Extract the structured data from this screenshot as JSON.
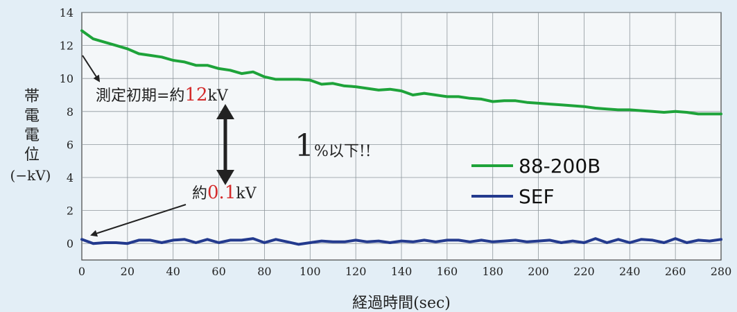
{
  "chart_data": {
    "type": "line",
    "xlabel": "経過時間(sec)",
    "ylabel_chars": [
      "帯",
      "電",
      "電",
      "位"
    ],
    "ylabel_unit": "(−kV)",
    "xlim": [
      0,
      280
    ],
    "ylim": [
      -1,
      14
    ],
    "xticks": [
      0,
      20,
      40,
      60,
      80,
      100,
      120,
      140,
      160,
      180,
      200,
      220,
      240,
      260,
      280
    ],
    "yticks": [
      0,
      2,
      4,
      6,
      8,
      10,
      12,
      14
    ],
    "grid": true,
    "legend_position": "right",
    "series": [
      {
        "name": "88-200B",
        "color": "#1ea33a",
        "x": [
          0,
          5,
          10,
          15,
          20,
          25,
          30,
          35,
          40,
          45,
          50,
          55,
          60,
          65,
          70,
          75,
          80,
          85,
          90,
          95,
          100,
          105,
          110,
          115,
          120,
          125,
          130,
          135,
          140,
          145,
          150,
          155,
          160,
          165,
          170,
          175,
          180,
          185,
          190,
          195,
          200,
          205,
          210,
          215,
          220,
          225,
          230,
          235,
          240,
          245,
          250,
          255,
          260,
          265,
          270,
          275,
          280
        ],
        "y": [
          12.9,
          12.4,
          12.2,
          12.0,
          11.8,
          11.5,
          11.4,
          11.3,
          11.1,
          11.0,
          10.8,
          10.8,
          10.6,
          10.5,
          10.3,
          10.4,
          10.1,
          9.95,
          9.95,
          9.95,
          9.9,
          9.65,
          9.7,
          9.55,
          9.5,
          9.4,
          9.3,
          9.35,
          9.25,
          9.0,
          9.1,
          9.0,
          8.9,
          8.9,
          8.8,
          8.75,
          8.6,
          8.65,
          8.65,
          8.55,
          8.5,
          8.45,
          8.4,
          8.35,
          8.3,
          8.2,
          8.15,
          8.1,
          8.1,
          8.05,
          8.0,
          7.95,
          8.0,
          7.95,
          7.85,
          7.85,
          7.85
        ]
      },
      {
        "name": "SEF",
        "color": "#233a8e",
        "x": [
          0,
          5,
          10,
          15,
          20,
          25,
          30,
          35,
          40,
          45,
          50,
          55,
          60,
          65,
          70,
          75,
          80,
          85,
          90,
          95,
          100,
          105,
          110,
          115,
          120,
          125,
          130,
          135,
          140,
          145,
          150,
          155,
          160,
          165,
          170,
          175,
          180,
          185,
          190,
          195,
          200,
          205,
          210,
          215,
          220,
          225,
          230,
          235,
          240,
          245,
          250,
          255,
          260,
          265,
          270,
          275,
          280
        ],
        "y": [
          0.25,
          0.0,
          0.05,
          0.05,
          0.0,
          0.2,
          0.2,
          0.05,
          0.2,
          0.25,
          0.05,
          0.25,
          0.05,
          0.2,
          0.2,
          0.3,
          0.05,
          0.25,
          0.1,
          -0.05,
          0.05,
          0.15,
          0.1,
          0.1,
          0.2,
          0.1,
          0.15,
          0.05,
          0.15,
          0.1,
          0.2,
          0.1,
          0.2,
          0.2,
          0.1,
          0.2,
          0.1,
          0.15,
          0.2,
          0.1,
          0.15,
          0.2,
          0.05,
          0.15,
          0.05,
          0.3,
          0.05,
          0.25,
          0.05,
          0.25,
          0.2,
          0.05,
          0.3,
          0.05,
          0.2,
          0.15,
          0.25
        ]
      }
    ],
    "annotations": {
      "initial_prefix": "測定初期=約",
      "initial_value": "12",
      "initial_unit": "kV",
      "diff_value": "1",
      "diff_text": "%以下!!",
      "sef_prefix": "約",
      "sef_value": "0.1",
      "sef_unit": "kV",
      "highlight_color": "#d42b2b"
    }
  }
}
